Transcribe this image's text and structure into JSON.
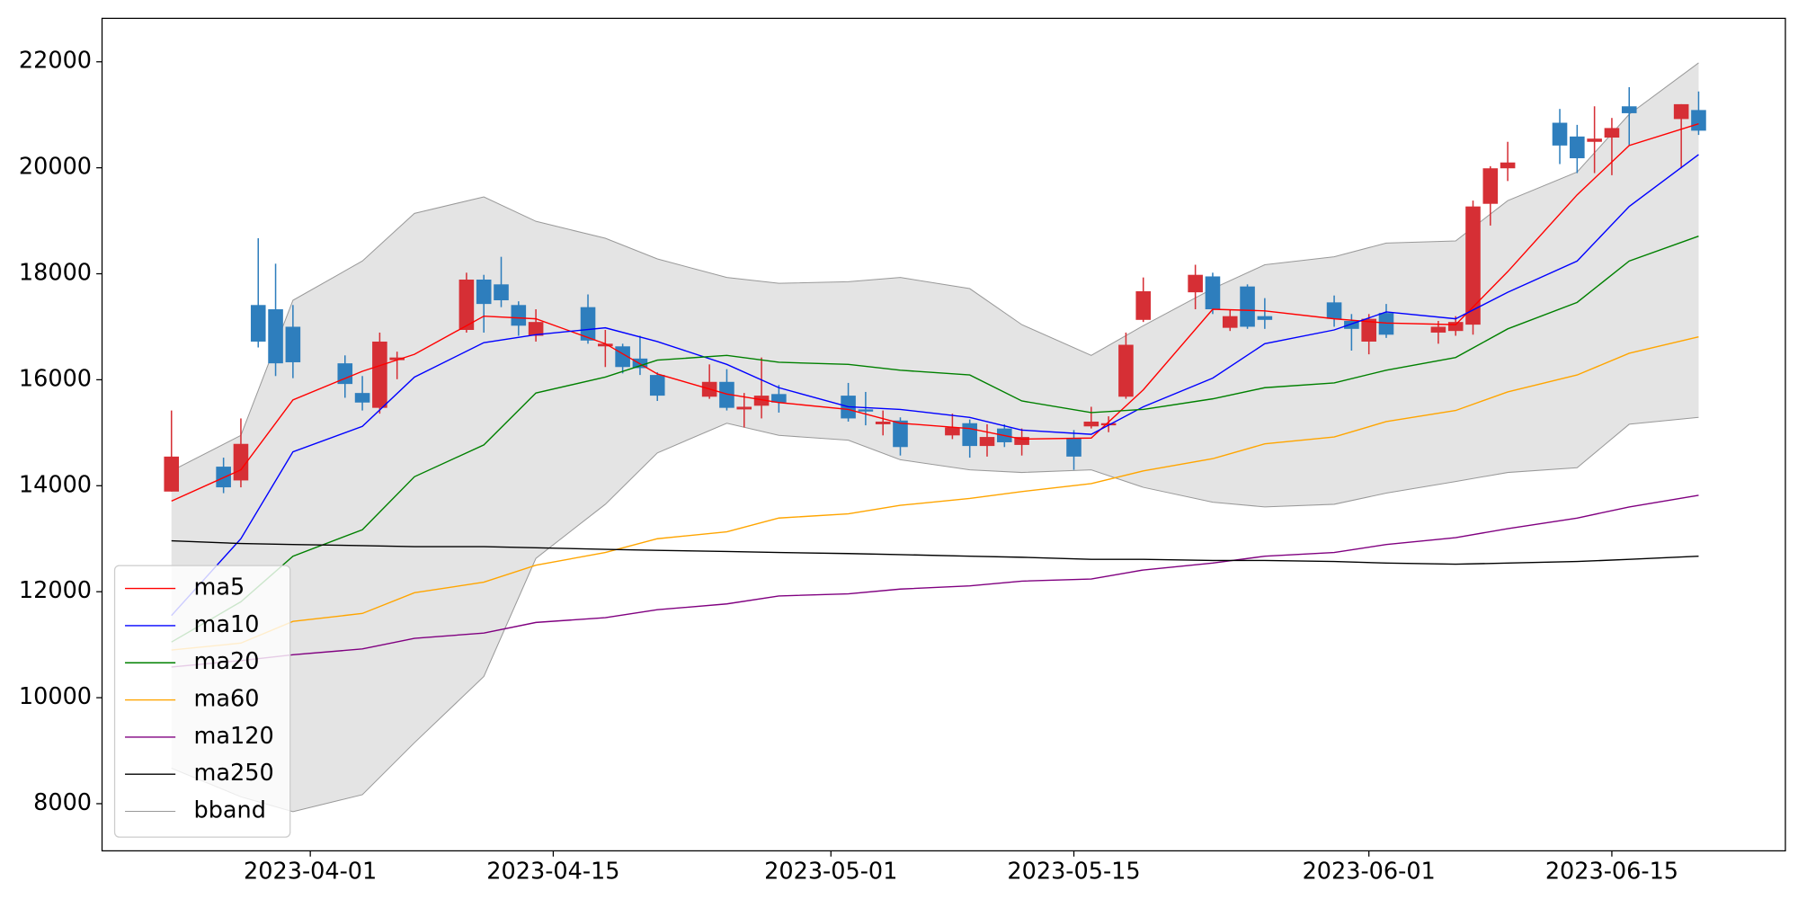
{
  "chart_data": {
    "type": "candlestick",
    "x": [
      "2023-03-24",
      "2023-03-27",
      "2023-03-28",
      "2023-03-29",
      "2023-03-30",
      "2023-03-31",
      "2023-04-03",
      "2023-04-04",
      "2023-04-05",
      "2023-04-06",
      "2023-04-10",
      "2023-04-11",
      "2023-04-12",
      "2023-04-13",
      "2023-04-14",
      "2023-04-17",
      "2023-04-18",
      "2023-04-19",
      "2023-04-20",
      "2023-04-21",
      "2023-04-24",
      "2023-04-25",
      "2023-04-26",
      "2023-04-27",
      "2023-04-28",
      "2023-05-02",
      "2023-05-03",
      "2023-05-04",
      "2023-05-05",
      "2023-05-08",
      "2023-05-09",
      "2023-05-10",
      "2023-05-11",
      "2023-05-12",
      "2023-05-15",
      "2023-05-16",
      "2023-05-17",
      "2023-05-18",
      "2023-05-19",
      "2023-05-22",
      "2023-05-23",
      "2023-05-24",
      "2023-05-25",
      "2023-05-26",
      "2023-05-30",
      "2023-05-31",
      "2023-06-01",
      "2023-06-02",
      "2023-06-05",
      "2023-06-06",
      "2023-06-07",
      "2023-06-08",
      "2023-06-09",
      "2023-06-12",
      "2023-06-13",
      "2023-06-14",
      "2023-06-15",
      "2023-06-16",
      "2023-06-19",
      "2023-06-20"
    ],
    "open": [
      13890,
      14360,
      14100,
      17410,
      17330,
      17000,
      16310,
      15750,
      15470,
      16370,
      16940,
      17890,
      17800,
      17410,
      16830,
      17370,
      16630,
      16630,
      16400,
      16090,
      15680,
      15960,
      15440,
      15510,
      15730,
      15700,
      15440,
      15160,
      15230,
      14950,
      15180,
      14750,
      15080,
      14770,
      14900,
      15120,
      15140,
      15680,
      17130,
      17650,
      17950,
      16980,
      17760,
      17200,
      17460,
      17110,
      16720,
      17260,
      16890,
      16920,
      17040,
      19320,
      19990,
      20850,
      20590,
      20490,
      20570,
      21160,
      20920,
      21090
    ],
    "high": [
      15420,
      14530,
      15270,
      18670,
      18190,
      17410,
      16460,
      16070,
      16890,
      16530,
      18020,
      17980,
      18320,
      17480,
      17330,
      17610,
      16940,
      16680,
      16830,
      16140,
      16290,
      16200,
      15750,
      16420,
      15900,
      15940,
      15770,
      15420,
      15290,
      15360,
      15250,
      15160,
      15160,
      15080,
      15050,
      15490,
      15310,
      16890,
      17930,
      18170,
      18020,
      17330,
      17800,
      17540,
      17590,
      17240,
      17240,
      17430,
      17110,
      17200,
      19380,
      20030,
      20490,
      21110,
      20810,
      21160,
      20940,
      21520,
      21200,
      21440
    ],
    "low": [
      13890,
      13860,
      13970,
      16610,
      16070,
      16030,
      15660,
      15420,
      15360,
      16010,
      16890,
      16890,
      17370,
      16830,
      16720,
      16680,
      16240,
      16120,
      16090,
      15600,
      15640,
      15420,
      15100,
      15270,
      15380,
      15210,
      15140,
      14950,
      14570,
      14880,
      14530,
      14550,
      14730,
      14570,
      14300,
      15080,
      15010,
      15640,
      17090,
      17330,
      17240,
      16920,
      16960,
      16960,
      17000,
      16550,
      16480,
      16790,
      16680,
      16830,
      16850,
      18910,
      19750,
      20070,
      19900,
      19900,
      19860,
      20420,
      19990,
      20620
    ],
    "close": [
      14550,
      13970,
      14790,
      16720,
      16310,
      16330,
      15920,
      15570,
      16720,
      16420,
      17890,
      17430,
      17500,
      17020,
      17090,
      16740,
      16680,
      16240,
      16220,
      15700,
      15960,
      15470,
      15490,
      15700,
      15570,
      15270,
      15400,
      15210,
      14730,
      15100,
      14750,
      14920,
      14820,
      14920,
      14550,
      15210,
      15180,
      16660,
      17670,
      17980,
      17330,
      17200,
      17000,
      17130,
      17150,
      16960,
      17150,
      16850,
      17000,
      17090,
      19270,
      19990,
      20100,
      20420,
      20180,
      20550,
      20750,
      21030,
      21200,
      20700
    ],
    "up_color": "#d62f35",
    "down_color": "#2e7ebd",
    "overlays": {
      "x": [
        "2023-03-24",
        "2023-03-28",
        "2023-03-31",
        "2023-04-04",
        "2023-04-07",
        "2023-04-11",
        "2023-04-14",
        "2023-04-18",
        "2023-04-21",
        "2023-04-25",
        "2023-04-28",
        "2023-05-02",
        "2023-05-05",
        "2023-05-09",
        "2023-05-12",
        "2023-05-16",
        "2023-05-19",
        "2023-05-23",
        "2023-05-26",
        "2023-05-30",
        "2023-06-02",
        "2023-06-06",
        "2023-06-09",
        "2023-06-13",
        "2023-06-16",
        "2023-06-20"
      ],
      "series": [
        {
          "name": "ma5",
          "color": "#ff0000",
          "values": [
            13710,
            14300,
            15620,
            16160,
            16480,
            17200,
            17150,
            16680,
            16110,
            15730,
            15570,
            15440,
            15180,
            15080,
            14880,
            14900,
            15810,
            17330,
            17300,
            17150,
            17070,
            17040,
            18040,
            19490,
            20420,
            20830
          ]
        },
        {
          "name": "ma10",
          "color": "#0000ff",
          "values": [
            11550,
            13000,
            14640,
            15120,
            16050,
            16700,
            16850,
            16980,
            16720,
            16290,
            15850,
            15490,
            15440,
            15290,
            15050,
            14970,
            15490,
            16030,
            16680,
            16940,
            17280,
            17150,
            17650,
            18240,
            19270,
            20250
          ]
        },
        {
          "name": "ma20",
          "color": "#008000",
          "values": [
            11050,
            11810,
            12670,
            13170,
            14170,
            14770,
            15750,
            16050,
            16370,
            16460,
            16330,
            16290,
            16180,
            16090,
            15600,
            15380,
            15440,
            15640,
            15850,
            15940,
            16180,
            16420,
            16960,
            17460,
            18240,
            18710
          ]
        },
        {
          "name": "ma60",
          "color": "#ffa500",
          "values": [
            10900,
            11030,
            11440,
            11590,
            11980,
            12180,
            12500,
            12740,
            13000,
            13130,
            13390,
            13470,
            13630,
            13760,
            13890,
            14040,
            14280,
            14510,
            14790,
            14920,
            15210,
            15420,
            15770,
            16090,
            16500,
            16810
          ]
        },
        {
          "name": "ma120",
          "color": "#800080",
          "values": [
            10580,
            10700,
            10810,
            10920,
            11120,
            11220,
            11420,
            11510,
            11660,
            11770,
            11920,
            11960,
            12050,
            12110,
            12200,
            12240,
            12410,
            12540,
            12670,
            12740,
            12890,
            13020,
            13190,
            13390,
            13600,
            13820
          ]
        },
        {
          "name": "ma250",
          "color": "#000000",
          "values": [
            12960,
            12910,
            12890,
            12870,
            12850,
            12850,
            12830,
            12800,
            12780,
            12760,
            12740,
            12720,
            12700,
            12670,
            12650,
            12610,
            12610,
            12590,
            12590,
            12570,
            12540,
            12520,
            12540,
            12570,
            12610,
            12670
          ]
        }
      ],
      "band": {
        "name": "bband",
        "color": "#999999",
        "fill": "#e4e4e4",
        "upper": [
          14280,
          14950,
          17500,
          18240,
          19140,
          19450,
          18990,
          18670,
          18280,
          17930,
          17820,
          17850,
          17930,
          17720,
          17040,
          16460,
          17020,
          17720,
          18170,
          18320,
          18580,
          18620,
          19380,
          19920,
          21010,
          21980
        ],
        "lower": [
          8670,
          8130,
          7850,
          8170,
          9150,
          10400,
          12630,
          13650,
          14620,
          15180,
          14950,
          14860,
          14490,
          14300,
          14250,
          14300,
          13970,
          13690,
          13600,
          13650,
          13860,
          14080,
          14250,
          14340,
          15160,
          15290
        ]
      }
    },
    "xlim": [
      "2023-03-20",
      "2023-06-25"
    ],
    "xticks": [
      "2023-04-01",
      "2023-04-15",
      "2023-05-01",
      "2023-05-15",
      "2023-06-01",
      "2023-06-15"
    ],
    "ylim": [
      7110,
      22820
    ],
    "yticks": [
      8000,
      10000,
      12000,
      14000,
      16000,
      18000,
      20000,
      22000
    ],
    "legend": "lower left"
  }
}
